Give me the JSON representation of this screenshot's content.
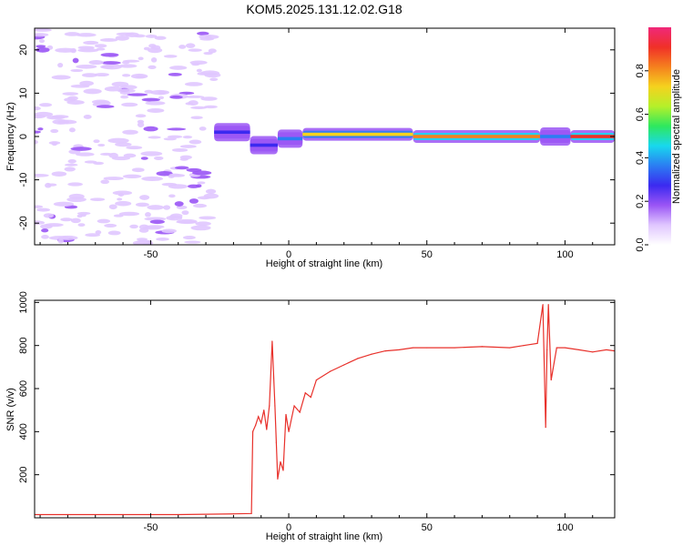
{
  "title": "KOM5.2025.131.12.02.G18",
  "colorbar": {
    "label": "Normalized spectral amplitude",
    "range": [
      0,
      1
    ],
    "ticks": [
      "0.0",
      "0.2",
      "0.4",
      "0.6",
      "0.8"
    ],
    "colormap": [
      "#ffffff",
      "#e0c6ff",
      "#9a55f5",
      "#3b2af0",
      "#2b7df2",
      "#18d8ee",
      "#2ee85e",
      "#b5f02a",
      "#f5d21e",
      "#f5801e",
      "#f03028",
      "#f0287a"
    ]
  },
  "chart_data": [
    {
      "type": "heatmap",
      "xlabel": "Height of straight line (km)",
      "ylabel": "Frequency (Hz)",
      "xlim": [
        -92,
        118
      ],
      "ylim": [
        -25,
        25
      ],
      "xticks": [
        -50,
        0,
        50,
        100
      ],
      "yticks": [
        -20,
        -10,
        0,
        10,
        20
      ],
      "grid": false,
      "segments": [
        {
          "x_start": -92,
          "x_end": -27,
          "description_value": "sparse noise",
          "amplitude": 0.1
        },
        {
          "x_start": -27,
          "x_end": -14,
          "freq": 1,
          "amplitude": 0.3
        },
        {
          "x_start": -14,
          "x_end": -4,
          "freq": -2,
          "amplitude": 0.3
        },
        {
          "x_start": -4,
          "x_end": 5,
          "freq": -0.5,
          "amplitude": 0.35
        },
        {
          "x_start": 5,
          "x_end": 45,
          "freq": 0.5,
          "amplitude": 0.75
        },
        {
          "x_start": 45,
          "x_end": 91,
          "freq": 0,
          "amplitude": 0.85
        },
        {
          "x_start": 91,
          "x_end": 102,
          "freq": 0,
          "amplitude": 0.35
        },
        {
          "x_start": 102,
          "x_end": 118,
          "freq": 0,
          "amplitude": 0.9
        }
      ]
    },
    {
      "type": "line",
      "xlabel": "Height of straight line (km)",
      "ylabel": "SNR (v/v)",
      "xlim": [
        -92,
        118
      ],
      "ylim": [
        0,
        1010
      ],
      "xticks": [
        -50,
        0,
        50,
        100
      ],
      "yticks": [
        200,
        400,
        600,
        800,
        1000
      ],
      "grid": false,
      "color": "#e8302a",
      "series": [
        {
          "x": [
            -92,
            -80,
            -60,
            -40,
            -20,
            -13.5,
            -13,
            -12,
            -11,
            -10,
            -9,
            -8,
            -7,
            -6,
            -5,
            -4.5,
            -4,
            -3,
            -2,
            -1,
            0,
            2,
            4,
            6,
            8,
            10,
            15,
            20,
            25,
            30,
            35,
            40,
            45,
            50,
            60,
            70,
            80,
            85,
            90,
            92,
            93,
            93.5,
            94,
            95,
            97,
            100,
            105,
            110,
            115,
            118
          ],
          "y": [
            15,
            15,
            15,
            15,
            18,
            20,
            400,
            430,
            470,
            440,
            500,
            410,
            520,
            820,
            520,
            350,
            180,
            260,
            220,
            480,
            400,
            520,
            490,
            580,
            560,
            640,
            680,
            710,
            740,
            760,
            775,
            780,
            790,
            790,
            790,
            795,
            790,
            800,
            810,
            990,
            420,
            780,
            990,
            640,
            790,
            790,
            780,
            770,
            780,
            775
          ]
        }
      ]
    }
  ]
}
